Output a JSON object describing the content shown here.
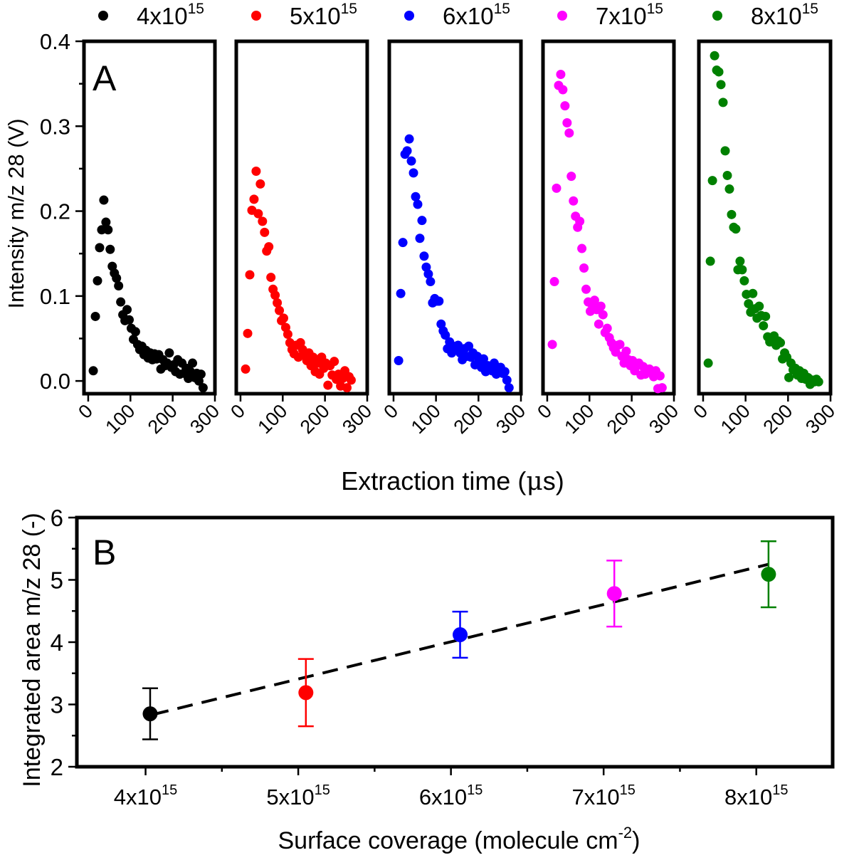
{
  "chart_data": [
    {
      "panel": "A",
      "type": "scatter",
      "xlabel_main": "Extraction time (",
      "xlabel_mu": "μ",
      "xlabel_tail": "s)",
      "ylabel": "Intensity m/z 28 (V)",
      "x_ticks": [
        "0",
        "100",
        "200",
        "300"
      ],
      "y_ticks": [
        "0.0",
        "0.1",
        "0.2",
        "0.3",
        "0.4"
      ],
      "xlim": [
        -10,
        300
      ],
      "ylim": [
        -0.015,
        0.4
      ],
      "legend_position": "top",
      "series": [
        {
          "name": "4x10",
          "exp": "15",
          "color": "#000000",
          "x": [
            12,
            17,
            22,
            27,
            32,
            37,
            42,
            47,
            52,
            57,
            62,
            67,
            72,
            77,
            82,
            87,
            92,
            97,
            102,
            107,
            112,
            117,
            122,
            127,
            132,
            137,
            142,
            147,
            152,
            157,
            162,
            167,
            172,
            177,
            182,
            187,
            192,
            197,
            202,
            207,
            212,
            217,
            222,
            227,
            232,
            237,
            242,
            247,
            252,
            257,
            262,
            267,
            272
          ],
          "y": [
            0.012,
            0.076,
            0.118,
            0.157,
            0.178,
            0.213,
            0.187,
            0.178,
            0.155,
            0.135,
            0.127,
            0.121,
            0.112,
            0.093,
            0.078,
            0.071,
            0.084,
            0.072,
            0.062,
            0.049,
            0.058,
            0.043,
            0.037,
            0.041,
            0.031,
            0.036,
            0.027,
            0.033,
            0.025,
            0.032,
            0.026,
            0.031,
            0.014,
            0.025,
            0.018,
            0.021,
            0.033,
            0.016,
            0.019,
            0.011,
            0.025,
            0.008,
            0.021,
            0.009,
            0.015,
            0.003,
            0.011,
            0.021,
            0.004,
            0.009,
            0.0,
            0.008,
            -0.008
          ]
        },
        {
          "name": "5x10",
          "exp": "15",
          "color": "#ff0000",
          "x": [
            12,
            17,
            22,
            27,
            32,
            37,
            42,
            47,
            52,
            57,
            62,
            67,
            72,
            77,
            82,
            87,
            92,
            97,
            102,
            107,
            112,
            117,
            122,
            127,
            132,
            137,
            142,
            147,
            152,
            157,
            162,
            167,
            172,
            177,
            182,
            187,
            192,
            197,
            202,
            207,
            212,
            217,
            222,
            227,
            232,
            237,
            242,
            247,
            252,
            257,
            262
          ],
          "y": [
            0.014,
            0.056,
            0.125,
            0.201,
            0.214,
            0.247,
            0.197,
            0.232,
            0.188,
            0.175,
            0.153,
            0.158,
            0.122,
            0.108,
            0.101,
            0.092,
            0.083,
            0.071,
            0.074,
            0.063,
            0.055,
            0.045,
            0.037,
            0.032,
            0.042,
            0.028,
            0.045,
            0.037,
            0.031,
            0.024,
            0.033,
            0.018,
            0.028,
            0.011,
            0.021,
            0.008,
            0.028,
            0.015,
            0.021,
            -0.005,
            0.018,
            0.007,
            0.023,
            0.002,
            0.008,
            -0.006,
            0.003,
            0.012,
            -0.008,
            0.005,
            0.001
          ]
        },
        {
          "name": "6x10",
          "exp": "15",
          "color": "#0000ff",
          "x": [
            12,
            17,
            22,
            27,
            32,
            37,
            42,
            47,
            52,
            57,
            62,
            67,
            72,
            77,
            82,
            87,
            92,
            97,
            102,
            107,
            112,
            117,
            122,
            127,
            132,
            137,
            142,
            147,
            152,
            157,
            162,
            167,
            172,
            177,
            182,
            187,
            192,
            197,
            202,
            207,
            212,
            217,
            222,
            227,
            232,
            237,
            242,
            247,
            252,
            257,
            262,
            267,
            272
          ],
          "y": [
            0.024,
            0.103,
            0.163,
            0.267,
            0.271,
            0.285,
            0.259,
            0.245,
            0.217,
            0.208,
            0.168,
            0.189,
            0.147,
            0.134,
            0.126,
            0.117,
            0.092,
            0.097,
            0.094,
            0.094,
            0.067,
            0.059,
            0.054,
            0.038,
            0.046,
            0.033,
            0.037,
            0.041,
            0.042,
            0.033,
            0.025,
            0.038,
            0.029,
            0.041,
            0.028,
            0.033,
            0.019,
            0.029,
            0.021,
            0.016,
            0.026,
            0.011,
            0.018,
            0.014,
            0.012,
            0.021,
            0.008,
            0.014,
            0.016,
            0.009,
            0.011,
            0.001,
            -0.008
          ]
        },
        {
          "name": "7x10",
          "exp": "15",
          "color": "#ff00ff",
          "x": [
            12,
            17,
            22,
            27,
            32,
            37,
            42,
            47,
            52,
            57,
            62,
            67,
            72,
            77,
            82,
            87,
            92,
            97,
            102,
            107,
            112,
            117,
            122,
            127,
            132,
            137,
            142,
            147,
            152,
            157,
            162,
            167,
            172,
            177,
            182,
            187,
            192,
            197,
            202,
            207,
            212,
            217,
            222,
            227,
            232,
            237,
            242,
            247,
            252,
            257,
            262,
            267,
            272
          ],
          "y": [
            0.043,
            0.117,
            0.227,
            0.348,
            0.361,
            0.343,
            0.324,
            0.304,
            0.292,
            0.241,
            0.212,
            0.194,
            0.181,
            0.188,
            0.156,
            0.133,
            0.108,
            0.093,
            0.082,
            0.089,
            0.095,
            0.084,
            0.067,
            0.088,
            0.078,
            0.057,
            0.062,
            0.051,
            0.045,
            0.039,
            0.034,
            0.042,
            0.043,
            0.029,
            0.021,
            0.035,
            0.025,
            0.018,
            0.024,
            0.012,
            0.018,
            0.021,
            0.007,
            0.017,
            0.008,
            0.013,
            0.014,
            0.011,
            0.005,
            0.012,
            -0.009,
            0.006,
            -0.008
          ]
        },
        {
          "name": "8x10",
          "exp": "15",
          "color": "#008000",
          "x": [
            12,
            17,
            22,
            27,
            32,
            37,
            42,
            47,
            52,
            57,
            62,
            67,
            72,
            77,
            82,
            87,
            92,
            97,
            102,
            107,
            112,
            117,
            122,
            127,
            132,
            137,
            142,
            147,
            152,
            157,
            162,
            167,
            172,
            177,
            182,
            187,
            192,
            197,
            202,
            207,
            212,
            217,
            222,
            227,
            232,
            237,
            242,
            247,
            252,
            257,
            262,
            267,
            272
          ],
          "y": [
            0.021,
            0.141,
            0.236,
            0.383,
            0.366,
            0.364,
            0.349,
            0.328,
            0.271,
            0.242,
            0.226,
            0.196,
            0.181,
            0.179,
            0.131,
            0.141,
            0.131,
            0.118,
            0.102,
            0.091,
            0.081,
            0.103,
            0.085,
            0.074,
            0.088,
            0.077,
            0.065,
            0.076,
            0.052,
            0.046,
            0.049,
            0.053,
            0.042,
            0.047,
            0.045,
            0.026,
            0.033,
            0.028,
            0.004,
            0.021,
            0.013,
            0.015,
            0.007,
            0.012,
            0.003,
            0.009,
            0.002,
            0.004,
            -0.004,
            0.001,
            -0.001,
            0.002,
            -0.001
          ]
        }
      ]
    },
    {
      "panel": "B",
      "type": "scatter",
      "xlabel_main": "Surface coverage (molecule cm",
      "xlabel_sup": "-2",
      "xlabel_tail": ")",
      "ylabel": "Integrated area m/z 28 (-)",
      "x_tick_base": "x10",
      "x_tick_exp": "15",
      "x_ticks": [
        "4",
        "5",
        "6",
        "7",
        "8"
      ],
      "y_ticks": [
        "2",
        "3",
        "4",
        "5",
        "6"
      ],
      "xlim": [
        3.55,
        8.5
      ],
      "ylim": [
        2,
        6
      ],
      "points": [
        {
          "x": 4.03,
          "y": 2.85,
          "err": 0.41,
          "color": "#000000"
        },
        {
          "x": 5.05,
          "y": 3.19,
          "err": 0.54,
          "color": "#ff0000"
        },
        {
          "x": 6.06,
          "y": 4.12,
          "err": 0.37,
          "color": "#0000ff"
        },
        {
          "x": 7.07,
          "y": 4.78,
          "err": 0.53,
          "color": "#ff00ff"
        },
        {
          "x": 8.08,
          "y": 5.09,
          "err": 0.53,
          "color": "#008000"
        }
      ],
      "fit_line": {
        "x": [
          4.05,
          8.08
        ],
        "y": [
          2.84,
          5.25
        ],
        "style": "dashed",
        "color": "#000000"
      }
    }
  ]
}
